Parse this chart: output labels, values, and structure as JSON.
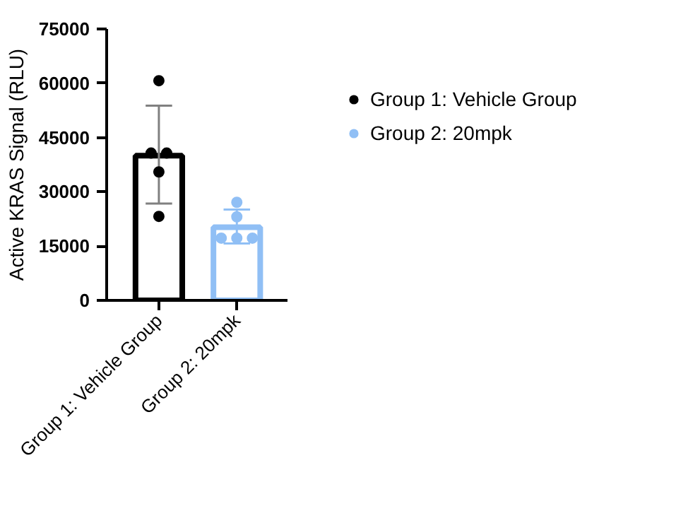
{
  "chart_data": {
    "type": "bar",
    "ylabel": "Active KRAS Signal (RLU)",
    "categories": [
      "Group 1: Vehicle Group",
      "Group 2: 20mpk"
    ],
    "ylim": [
      0,
      75000
    ],
    "yticks": [
      0,
      15000,
      30000,
      45000,
      60000,
      75000
    ],
    "grid": false,
    "legend": "top right",
    "marker": "circle",
    "series": [
      {
        "values": [
          40000,
          20200
        ],
        "colors": [
          "#000000",
          "#90bff5"
        ],
        "errors": [
          [
            26750,
            53800
          ],
          [
            15700,
            25100
          ]
        ]
      },
      {
        "type": "scatter",
        "name": "Group 1: Vehicle Group",
        "color": "#000000",
        "x": [
          "Group 1: Vehicle Group",
          "Group 1: Vehicle Group",
          "Group 1: Vehicle Group",
          "Group 1: Vehicle Group",
          "Group 1: Vehicle Group"
        ],
        "values": [
          60700,
          40700,
          40700,
          35500,
          23200
        ]
      },
      {
        "type": "scatter",
        "name": "Group 2: 20mpk",
        "color": "#90bff5",
        "x": [
          "Group 2: 20mpk",
          "Group 2: 20mpk",
          "Group 2: 20mpk",
          "Group 2: 20mpk",
          "Group 2: 20mpk"
        ],
        "values": [
          27100,
          23100,
          17200,
          17200,
          17200
        ]
      }
    ]
  }
}
